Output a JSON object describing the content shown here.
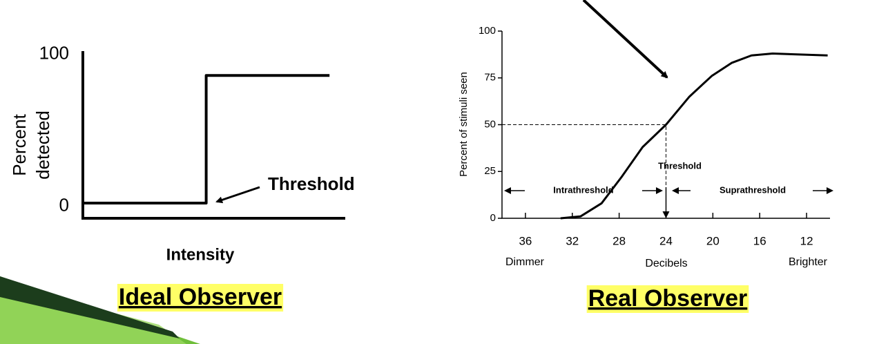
{
  "chart_data": [
    {
      "type": "line",
      "title": "Ideal Observer",
      "ylabel": [
        "Percent",
        "detected"
      ],
      "xlabel": "Intensity",
      "annotations": [
        "Threshold"
      ],
      "series": [
        {
          "color": "#000000",
          "x": [
            0,
            47,
            47,
            94
          ],
          "values": [
            2,
            2,
            86,
            86
          ]
        }
      ],
      "xlim": [
        0,
        100
      ],
      "ylim": [
        -8,
        102
      ],
      "yticks": [
        0,
        100
      ]
    },
    {
      "type": "line",
      "title": "Real Observer",
      "ylabel": "Percent of stimuli seen",
      "xlabel": "Decibels",
      "annotations": [
        "Threshold",
        "Intrathreshold",
        "Suprathreshold",
        "Dimmer",
        "Brighter"
      ],
      "threshold_x": 24,
      "threshold_y": 50,
      "series": [
        {
          "color": "#000000",
          "x": [
            33,
            31.3,
            29.5,
            27.8,
            26,
            24,
            22,
            20.1,
            18.4,
            16.7,
            14.9,
            10.2
          ],
          "values": [
            0,
            1,
            8,
            22,
            38,
            50,
            65,
            76,
            83,
            87,
            88,
            87
          ]
        }
      ],
      "xlim": [
        38,
        10
      ],
      "ylim": [
        0,
        100
      ],
      "xticks": [
        36,
        32,
        28,
        24,
        20,
        16,
        12
      ],
      "yticks": [
        0,
        25,
        50,
        75,
        100
      ]
    }
  ]
}
